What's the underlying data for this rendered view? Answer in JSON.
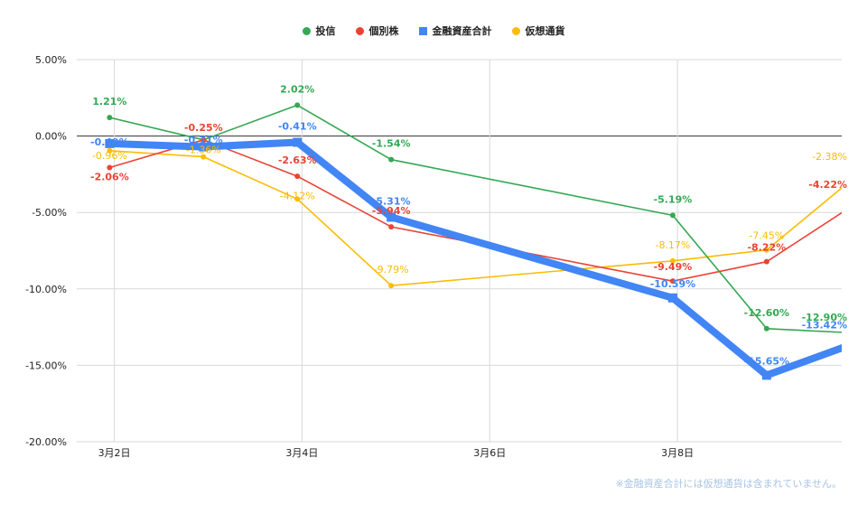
{
  "chart_data": {
    "type": "line",
    "legend_position": "top",
    "grid": true,
    "y_axis": {
      "min": -20,
      "max": 5,
      "ticks": [
        5,
        0,
        -5,
        -10,
        -15,
        -20
      ],
      "tick_labels": [
        "5.00%",
        "0.00%",
        "-5.00%",
        "-10.00%",
        "-15.00%",
        "-20.00%"
      ]
    },
    "x_axis": {
      "domain": [
        1.6,
        9.75
      ],
      "tick_positions": [
        2,
        4,
        6,
        8
      ],
      "tick_labels": [
        "3月2日",
        "3月4日",
        "3月6日",
        "3月8日"
      ]
    },
    "series": [
      {
        "name": "投信",
        "color": "#34a853",
        "marker": "circle",
        "thick": false,
        "points": [
          {
            "x": 1.95,
            "y": 1.21,
            "label": "1.21%"
          },
          {
            "x": 2.95,
            "y": -0.25,
            "label": ""
          },
          {
            "x": 3.95,
            "y": 2.02,
            "label": "2.02%"
          },
          {
            "x": 4.95,
            "y": -1.54,
            "label": "-1.54%"
          },
          {
            "x": 7.95,
            "y": -5.19,
            "label": "-5.19%"
          },
          {
            "x": 8.95,
            "y": -12.6,
            "label": "-12.60%"
          },
          {
            "x": 9.95,
            "y": -12.9,
            "label": "-12.90%"
          }
        ]
      },
      {
        "name": "個別株",
        "color": "#ea4335",
        "marker": "circle",
        "thick": false,
        "points": [
          {
            "x": 1.95,
            "y": -2.06,
            "label": "-2.06%"
          },
          {
            "x": 2.95,
            "y": -0.25,
            "label": "-0.25%"
          },
          {
            "x": 3.95,
            "y": -2.63,
            "label": "-2.63%"
          },
          {
            "x": 4.95,
            "y": -5.94,
            "label": "-5.94%"
          },
          {
            "x": 7.95,
            "y": -9.49,
            "label": "-9.49%"
          },
          {
            "x": 8.95,
            "y": -8.22,
            "label": "-8.22%"
          },
          {
            "x": 9.95,
            "y": -4.22,
            "label": "-4.22%"
          }
        ]
      },
      {
        "name": "金融資産合計",
        "color": "#4285f4",
        "marker": "square",
        "thick": true,
        "points": [
          {
            "x": 1.95,
            "y": -0.49,
            "label": "-0.49%"
          },
          {
            "x": 2.95,
            "y": -0.71,
            "label": "-0.71%"
          },
          {
            "x": 3.95,
            "y": -0.41,
            "label": "-0.41%"
          },
          {
            "x": 4.95,
            "y": -5.31,
            "label": "-5.31%"
          },
          {
            "x": 7.95,
            "y": -10.59,
            "label": "-10.59%"
          },
          {
            "x": 8.95,
            "y": -15.65,
            "label": "-15.65%"
          },
          {
            "x": 9.95,
            "y": -13.42,
            "label": "-13.42%"
          }
        ]
      },
      {
        "name": "仮想通貨",
        "color": "#fbbc04",
        "marker": "circle",
        "thick": false,
        "points": [
          {
            "x": 1.95,
            "y": -0.96,
            "label": "-0.96%"
          },
          {
            "x": 2.95,
            "y": -1.36,
            "label": "-1.36%"
          },
          {
            "x": 3.95,
            "y": -4.12,
            "label": "-4.12%"
          },
          {
            "x": 4.95,
            "y": -9.79,
            "label": "-9.79%"
          },
          {
            "x": 7.95,
            "y": -8.17,
            "label": "-8.17%"
          },
          {
            "x": 8.95,
            "y": -7.45,
            "label": "-7.45%"
          },
          {
            "x": 9.95,
            "y": -2.38,
            "label": "-2.38%"
          }
        ]
      }
    ]
  },
  "legend": [
    {
      "label": "投信",
      "color": "#34a853",
      "marker": "circle"
    },
    {
      "label": "個別株",
      "color": "#ea4335",
      "marker": "circle"
    },
    {
      "label": "金融資産合計",
      "color": "#4285f4",
      "marker": "square"
    },
    {
      "label": "仮想通貨",
      "color": "#fbbc04",
      "marker": "circle"
    }
  ],
  "footnote": "※金融資産合計には仮想通貨は含まれていません。"
}
